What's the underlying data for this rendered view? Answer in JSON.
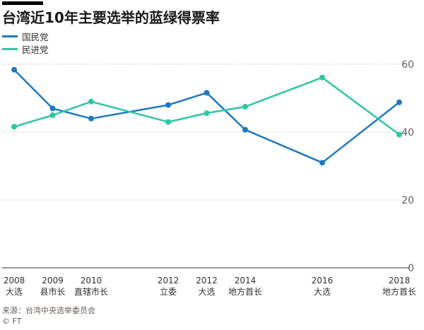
{
  "title": "台湾近10年主要选举的蓝绿得票率",
  "source": "来源：台湾中央选举委员会",
  "credit": "© FT",
  "chart_data": {
    "type": "line",
    "title": "台湾近10年主要选举的蓝绿得票率",
    "categories": [
      {
        "year": "2008",
        "label": "大选",
        "t": 0
      },
      {
        "year": "2009",
        "label": "县市长",
        "t": 1
      },
      {
        "year": "2010",
        "label": "直辖市长",
        "t": 2
      },
      {
        "year": "2012",
        "label": "立委",
        "t": 4
      },
      {
        "year": "2012",
        "label": "大选",
        "t": 5
      },
      {
        "year": "2014",
        "label": "地方首长",
        "t": 6
      },
      {
        "year": "2016",
        "label": "大选",
        "t": 8
      },
      {
        "year": "2018",
        "label": "地方首长",
        "t": 10
      }
    ],
    "series": [
      {
        "name": "国民党",
        "color": "#1f78c1",
        "values": [
          58.4,
          47.0,
          44.0,
          48.0,
          51.6,
          40.7,
          31.0,
          48.8
        ]
      },
      {
        "name": "民进党",
        "color": "#2fc5a5",
        "values": [
          41.6,
          45.0,
          49.0,
          43.0,
          45.6,
          47.5,
          56.1,
          39.3
        ]
      }
    ],
    "ylim": [
      0,
      60
    ],
    "yticks": [
      0,
      20,
      40,
      60
    ],
    "grid": true,
    "legend": "top-left"
  }
}
